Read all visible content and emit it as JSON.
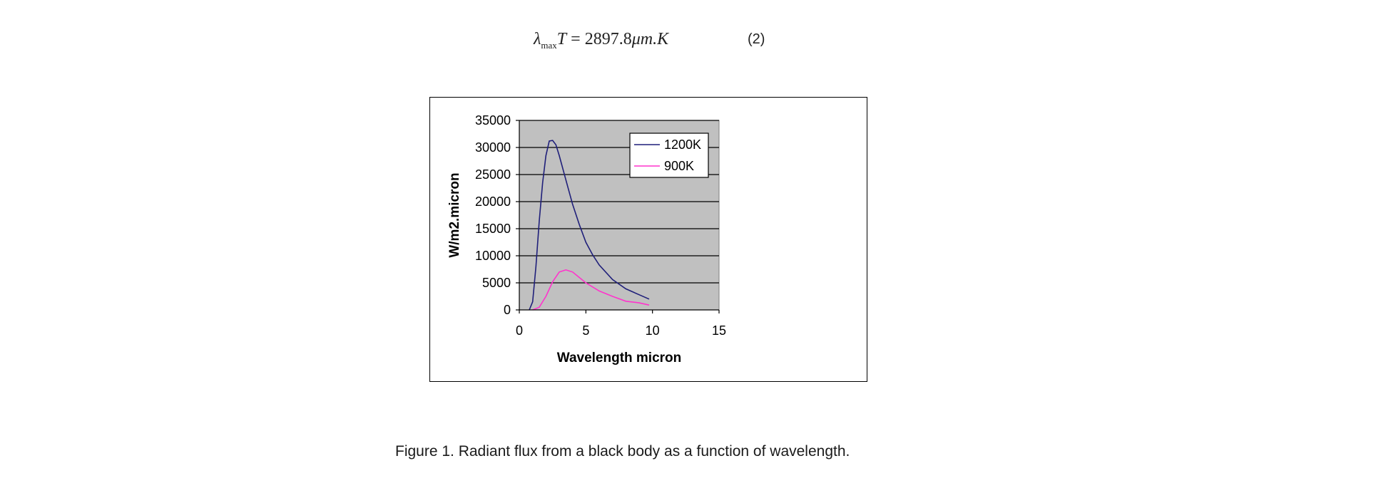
{
  "equation": {
    "lambda": "λ",
    "subscript": "max",
    "variable": "T",
    "equals": " = ",
    "value": "2897.8",
    "units": "μm.K",
    "number": "(2)"
  },
  "chart_data": {
    "type": "line",
    "title": "",
    "xlabel": "Wavelength micron",
    "ylabel": "W/m2.micron",
    "xlim": [
      0,
      15
    ],
    "ylim": [
      0,
      35000
    ],
    "x_ticks": [
      "0",
      "5",
      "10",
      "15"
    ],
    "y_ticks": [
      "0",
      "5000",
      "10000",
      "15000",
      "20000",
      "25000",
      "30000",
      "35000"
    ],
    "grid": "horizontal",
    "background": "#c0c0c0",
    "legend_position": "top-right",
    "series": [
      {
        "name": "1200K",
        "color": "#1f1f7a",
        "points": [
          [
            0.75,
            0
          ],
          [
            1,
            1500
          ],
          [
            1.25,
            8000
          ],
          [
            1.5,
            16500
          ],
          [
            1.75,
            23500
          ],
          [
            2,
            28500
          ],
          [
            2.25,
            31200
          ],
          [
            2.5,
            31300
          ],
          [
            2.75,
            30500
          ],
          [
            3,
            28500
          ],
          [
            3.5,
            24000
          ],
          [
            4,
            19500
          ],
          [
            4.5,
            15800
          ],
          [
            5,
            12500
          ],
          [
            5.5,
            10200
          ],
          [
            6,
            8300
          ],
          [
            7,
            5600
          ],
          [
            8,
            3900
          ],
          [
            9,
            2800
          ],
          [
            9.75,
            2000
          ]
        ]
      },
      {
        "name": "900K",
        "color": "#ff33cc",
        "points": [
          [
            1,
            0
          ],
          [
            1.5,
            500
          ],
          [
            2,
            2500
          ],
          [
            2.5,
            5200
          ],
          [
            3,
            7000
          ],
          [
            3.5,
            7400
          ],
          [
            4,
            7000
          ],
          [
            4.5,
            6000
          ],
          [
            5,
            5000
          ],
          [
            6,
            3500
          ],
          [
            7,
            2500
          ],
          [
            8,
            1600
          ],
          [
            9,
            1300
          ],
          [
            9.75,
            900
          ]
        ]
      }
    ]
  },
  "caption": "Figure 1. Radiant flux from a black body as a function of wavelength."
}
